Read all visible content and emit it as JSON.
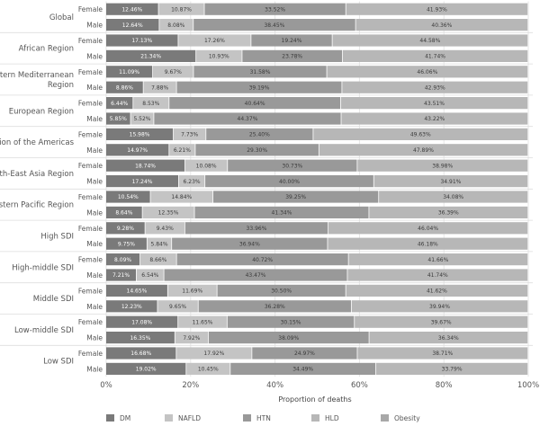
{
  "chart_data": {
    "type": "bar",
    "orientation": "horizontal",
    "stacked": true,
    "title": "",
    "xlabel": "Proportion of deaths",
    "ylabel": "",
    "xlim": [
      0,
      100
    ],
    "xticks": [
      "0%",
      "20%",
      "40%",
      "60%",
      "80%",
      "100%"
    ],
    "legend_position": "bottom",
    "series_names": [
      "DM",
      "NAFLD",
      "HTN",
      "HLD",
      "Obesity"
    ],
    "series_colors": [
      "#7a7a7a",
      "#c4c4c4",
      "#999999",
      "#b7b7b7",
      "#a8a8a8"
    ],
    "groups": [
      {
        "region": "Global",
        "rows": [
          {
            "sex": "Female",
            "values": [
              12.46,
              10.87,
              33.52,
              41.93
            ],
            "labels": [
              "12.46%",
              "10.87%",
              "33.52%",
              "41.93%"
            ]
          },
          {
            "sex": "Male",
            "values": [
              12.64,
              8.08,
              38.45,
              40.36
            ],
            "labels": [
              "12.64%",
              "8.08%",
              "38.45%",
              "40.36%"
            ]
          }
        ]
      },
      {
        "region": "African Region",
        "rows": [
          {
            "sex": "Female",
            "values": [
              17.13,
              17.26,
              19.24,
              44.58
            ],
            "labels": [
              "17.13%",
              "17.26%",
              "19.24%",
              "44.58%"
            ]
          },
          {
            "sex": "Male",
            "values": [
              21.34,
              10.93,
              23.78,
              41.74
            ],
            "labels": [
              "21.34%",
              "10.93%",
              "23.78%",
              "41.74%"
            ]
          }
        ]
      },
      {
        "region": "Eastern Mediterranean Region",
        "region_lines": [
          "Eastern Mediterranean",
          "Region"
        ],
        "rows": [
          {
            "sex": "Female",
            "values": [
              11.09,
              9.67,
              31.58,
              46.06
            ],
            "labels": [
              "11.09%",
              "9.67%",
              "31.58%",
              "46.06%"
            ]
          },
          {
            "sex": "Male",
            "values": [
              8.86,
              7.88,
              39.19,
              42.93
            ],
            "labels": [
              "8.86%",
              "7.88%",
              "39.19%",
              "42.93%"
            ]
          }
        ]
      },
      {
        "region": "European Region",
        "rows": [
          {
            "sex": "Female",
            "values": [
              6.44,
              8.53,
              40.64,
              43.51
            ],
            "labels": [
              "6.44%",
              "8.53%",
              "40.64%",
              "43.51%"
            ]
          },
          {
            "sex": "Male",
            "values": [
              5.85,
              5.52,
              44.37,
              43.22
            ],
            "labels": [
              "5.85%",
              "5.52%",
              "44.37%",
              "43.22%"
            ]
          }
        ]
      },
      {
        "region": "Region of the Americas",
        "rows": [
          {
            "sex": "Female",
            "values": [
              15.98,
              7.73,
              25.4,
              49.63
            ],
            "labels": [
              "15.98%",
              "7.73%",
              "25.40%",
              "49.63%"
            ]
          },
          {
            "sex": "Male",
            "values": [
              14.97,
              6.21,
              29.3,
              47.89
            ],
            "labels": [
              "14.97%",
              "6.21%",
              "29.30%",
              "47.89%"
            ]
          }
        ]
      },
      {
        "region": "South-East Asia Region",
        "rows": [
          {
            "sex": "Female",
            "values": [
              18.74,
              10.08,
              30.73,
              38.98
            ],
            "labels": [
              "18.74%",
              "10.08%",
              "30.73%",
              "38.98%"
            ]
          },
          {
            "sex": "Male",
            "values": [
              17.24,
              6.23,
              40.0,
              34.91
            ],
            "labels": [
              "17.24%",
              "6.23%",
              "40.00%",
              "34.91%"
            ]
          }
        ]
      },
      {
        "region": "Western Pacific Region",
        "rows": [
          {
            "sex": "Female",
            "values": [
              10.54,
              14.84,
              39.25,
              34.08
            ],
            "labels": [
              "10.54%",
              "14.84%",
              "39.25%",
              "34.08%"
            ]
          },
          {
            "sex": "Male",
            "values": [
              8.64,
              12.35,
              41.34,
              36.39
            ],
            "labels": [
              "8.64%",
              "12.35%",
              "41.34%",
              "36.39%"
            ]
          }
        ]
      },
      {
        "region": "High SDI",
        "rows": [
          {
            "sex": "Female",
            "values": [
              9.28,
              9.43,
              33.96,
              46.04
            ],
            "labels": [
              "9.28%",
              "9.43%",
              "33.96%",
              "46.04%"
            ]
          },
          {
            "sex": "Male",
            "values": [
              9.75,
              5.84,
              36.94,
              46.18
            ],
            "labels": [
              "9.75%",
              "5.84%",
              "36.94%",
              "46.18%"
            ]
          }
        ]
      },
      {
        "region": "High-middle SDI",
        "rows": [
          {
            "sex": "Female",
            "values": [
              8.09,
              8.66,
              40.72,
              41.66
            ],
            "labels": [
              "8.09%",
              "8.66%",
              "40.72%",
              "41.66%"
            ]
          },
          {
            "sex": "Male",
            "values": [
              7.21,
              6.54,
              43.47,
              41.74
            ],
            "labels": [
              "7.21%",
              "6.54%",
              "43.47%",
              "41.74%"
            ]
          }
        ]
      },
      {
        "region": "Middle SDI",
        "rows": [
          {
            "sex": "Female",
            "values": [
              14.65,
              11.69,
              30.5,
              41.62
            ],
            "labels": [
              "14.65%",
              "11.69%",
              "30.50%",
              "41.62%"
            ]
          },
          {
            "sex": "Male",
            "values": [
              12.23,
              9.65,
              36.28,
              39.94
            ],
            "labels": [
              "12.23%",
              "9.65%",
              "36.28%",
              "39.94%"
            ]
          }
        ]
      },
      {
        "region": "Low-middle SDI",
        "rows": [
          {
            "sex": "Female",
            "values": [
              17.08,
              11.65,
              30.15,
              39.67
            ],
            "labels": [
              "17.08%",
              "11.65%",
              "30.15%",
              "39.67%"
            ]
          },
          {
            "sex": "Male",
            "values": [
              16.35,
              7.92,
              38.09,
              36.34
            ],
            "labels": [
              "16.35%",
              "7.92%",
              "38.09%",
              "36.34%"
            ]
          }
        ]
      },
      {
        "region": "Low SDI",
        "rows": [
          {
            "sex": "Female",
            "values": [
              16.68,
              17.92,
              24.97,
              38.71
            ],
            "labels": [
              "16.68%",
              "17.92%",
              "24.97%",
              "38.71%"
            ]
          },
          {
            "sex": "Male",
            "values": [
              19.02,
              10.45,
              34.49,
              33.79
            ],
            "labels": [
              "19.02%",
              "10.45%",
              "34.49%",
              "33.79%"
            ]
          }
        ]
      }
    ]
  }
}
